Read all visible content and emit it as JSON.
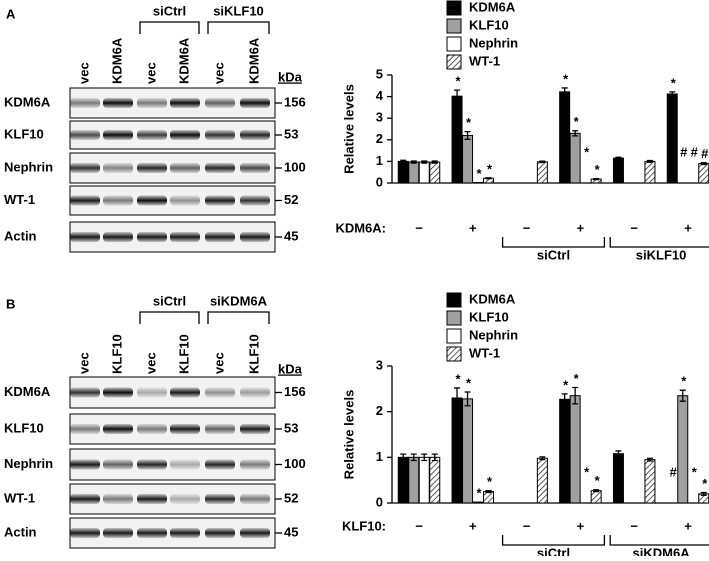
{
  "blots": [
    {
      "label": "A",
      "lanes": [
        "vec",
        "KDM6A",
        "vec",
        "KDM6A",
        "vec",
        "KDM6A"
      ],
      "lane_groups": [
        {
          "label": "siCtrl",
          "span": [
            2,
            3
          ]
        },
        {
          "label": "siKLF10",
          "span": [
            4,
            5
          ]
        }
      ],
      "unit": "kDa",
      "rows": [
        {
          "name": "KDM6A",
          "kda": "156"
        },
        {
          "name": "KLF10",
          "kda": "53"
        },
        {
          "name": "Nephrin",
          "kda": "100"
        },
        {
          "name": "WT-1",
          "kda": "52"
        },
        {
          "name": "Actin",
          "kda": "45"
        }
      ]
    },
    {
      "label": "B",
      "lanes": [
        "vec",
        "KLF10",
        "vec",
        "KLF10",
        "vec",
        "KLF10"
      ],
      "lane_groups": [
        {
          "label": "siCtrl",
          "span": [
            2,
            3
          ]
        },
        {
          "label": "siKDM6A",
          "span": [
            4,
            5
          ]
        }
      ],
      "unit": "kDa",
      "rows": [
        {
          "name": "KDM6A",
          "kda": "156"
        },
        {
          "name": "KLF10",
          "kda": "53"
        },
        {
          "name": "Nephrin",
          "kda": "100"
        },
        {
          "name": "WT-1",
          "kda": "52"
        },
        {
          "name": "Actin",
          "kda": "45"
        }
      ]
    }
  ],
  "chart_data": [
    {
      "type": "bar",
      "ylabel": "Relative levels",
      "xlabel": "KDM6A:",
      "categories": [
        "−",
        "+",
        "−",
        "+",
        "−",
        "+"
      ],
      "category_groups": [
        {
          "label": "siCtrl",
          "span": [
            2,
            3
          ]
        },
        {
          "label": "siKLF10",
          "span": [
            4,
            5
          ]
        }
      ],
      "ylim": [
        0,
        5
      ],
      "yticks": [
        0,
        1,
        2,
        3,
        4,
        5
      ],
      "series": [
        {
          "name": "KDM6A",
          "color": "#000000",
          "values": [
            1.0,
            4.02,
            null,
            4.22,
            1.15,
            4.12
          ],
          "errors": [
            0.05,
            0.28,
            null,
            0.18,
            0.04,
            0.1
          ],
          "annotations": [
            null,
            "*",
            null,
            "*",
            null,
            "*"
          ]
        },
        {
          "name": "KLF10",
          "color": "#a0a0a0",
          "values": [
            0.97,
            2.2,
            null,
            2.3,
            null,
            null
          ],
          "errors": [
            0.05,
            0.18,
            null,
            0.12,
            null,
            null
          ],
          "annotations": [
            null,
            "*",
            null,
            "*",
            null,
            "#"
          ]
        },
        {
          "name": "Nephrin",
          "color": "#ffffff",
          "values": [
            0.97,
            0.02,
            null,
            null,
            null,
            null
          ],
          "errors": [
            0.05,
            null,
            null,
            null,
            null,
            null
          ],
          "annotations": [
            null,
            "*",
            null,
            "*",
            null,
            "#"
          ]
        },
        {
          "name": "WT-1",
          "color": "#ffffff",
          "hatch": true,
          "values": [
            0.97,
            0.22,
            0.98,
            0.18,
            1.0,
            0.9
          ],
          "errors": [
            0.05,
            0.02,
            0.03,
            0.02,
            0.04,
            0.04
          ],
          "annotations": [
            null,
            "*",
            null,
            "*",
            null,
            "#"
          ]
        }
      ]
    },
    {
      "type": "bar",
      "ylabel": "Relative levels",
      "xlabel": "KLF10:",
      "categories": [
        "−",
        "+",
        "−",
        "+",
        "−",
        "+"
      ],
      "category_groups": [
        {
          "label": "siCtrl",
          "span": [
            2,
            3
          ]
        },
        {
          "label": "siKDM6A",
          "span": [
            4,
            5
          ]
        }
      ],
      "ylim": [
        0,
        3
      ],
      "yticks": [
        0,
        1,
        2,
        3
      ],
      "series": [
        {
          "name": "KDM6A",
          "color": "#000000",
          "values": [
            1.0,
            2.3,
            null,
            2.27,
            1.08,
            null
          ],
          "errors": [
            0.07,
            0.22,
            null,
            0.12,
            0.06,
            null
          ],
          "annotations": [
            null,
            "*",
            null,
            "*",
            null,
            "#"
          ]
        },
        {
          "name": "KLF10",
          "color": "#a0a0a0",
          "values": [
            1.0,
            2.28,
            null,
            2.35,
            null,
            2.35
          ],
          "errors": [
            0.07,
            0.15,
            null,
            0.18,
            null,
            0.12
          ],
          "annotations": [
            null,
            "*",
            null,
            "*",
            null,
            "*"
          ]
        },
        {
          "name": "Nephrin",
          "color": "#ffffff",
          "values": [
            1.0,
            0.02,
            null,
            null,
            null,
            null
          ],
          "errors": [
            0.07,
            null,
            null,
            null,
            null,
            null
          ],
          "annotations": [
            null,
            "*",
            null,
            "*",
            null,
            "*"
          ]
        },
        {
          "name": "WT-1",
          "color": "#ffffff",
          "hatch": true,
          "values": [
            1.0,
            0.25,
            0.98,
            0.27,
            0.95,
            0.2
          ],
          "errors": [
            0.07,
            0.02,
            0.03,
            0.02,
            0.03,
            0.03
          ],
          "annotations": [
            null,
            "*",
            null,
            "*",
            null,
            "*"
          ]
        }
      ]
    }
  ]
}
